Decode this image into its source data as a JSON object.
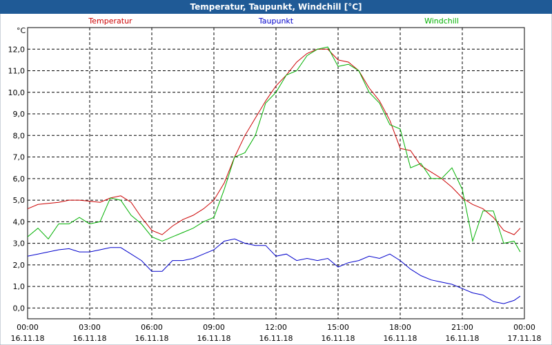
{
  "chart_data": {
    "type": "line",
    "title": "Temperatur, Taupunkt, Windchill [°C]",
    "y_unit": "°C",
    "x": [
      0,
      0.5,
      1,
      1.5,
      2,
      2.5,
      3,
      3.5,
      4,
      4.5,
      5,
      5.5,
      6,
      6.5,
      7,
      7.5,
      8,
      8.5,
      9,
      9.5,
      10,
      10.5,
      11,
      11.5,
      12,
      12.5,
      13,
      13.5,
      14,
      14.5,
      15,
      15.5,
      16,
      16.5,
      17,
      17.5,
      18,
      18.5,
      19,
      19.5,
      20,
      20.5,
      21,
      21.5,
      22,
      22.5,
      23,
      23.5,
      23.8
    ],
    "series": [
      {
        "name": "Temperatur",
        "color": "#cc0000",
        "values": [
          4.6,
          4.8,
          4.85,
          4.9,
          5.0,
          5.0,
          4.95,
          4.9,
          5.1,
          5.2,
          4.9,
          4.2,
          3.6,
          3.4,
          3.8,
          4.1,
          4.3,
          4.6,
          5.0,
          5.8,
          7.0,
          8.0,
          8.8,
          9.6,
          10.3,
          10.8,
          11.4,
          11.8,
          12.0,
          12.0,
          11.5,
          11.4,
          11.0,
          10.2,
          9.6,
          8.7,
          7.4,
          7.3,
          6.6,
          6.3,
          6.0,
          5.6,
          5.1,
          4.8,
          4.6,
          4.2,
          3.6,
          3.4,
          3.7
        ]
      },
      {
        "name": "Taupunkt",
        "color": "#0000cc",
        "values": [
          2.4,
          2.5,
          2.6,
          2.7,
          2.75,
          2.6,
          2.6,
          2.7,
          2.8,
          2.8,
          2.5,
          2.2,
          1.7,
          1.7,
          2.2,
          2.2,
          2.3,
          2.5,
          2.7,
          3.1,
          3.2,
          3.0,
          2.9,
          2.9,
          2.4,
          2.5,
          2.2,
          2.3,
          2.2,
          2.3,
          1.9,
          2.1,
          2.2,
          2.4,
          2.3,
          2.5,
          2.2,
          1.8,
          1.5,
          1.3,
          1.2,
          1.1,
          0.9,
          0.7,
          0.6,
          0.3,
          0.2,
          0.35,
          0.55
        ]
      },
      {
        "name": "Windchill",
        "color": "#00b000",
        "values": [
          3.3,
          3.7,
          3.2,
          3.9,
          3.9,
          4.2,
          3.9,
          4.0,
          5.1,
          5.0,
          4.3,
          3.9,
          3.3,
          3.1,
          3.3,
          3.5,
          3.7,
          4.0,
          4.2,
          5.5,
          7.0,
          7.2,
          8.0,
          9.5,
          10.0,
          10.8,
          11.0,
          11.7,
          12.0,
          12.1,
          11.2,
          11.3,
          11.0,
          10.0,
          9.5,
          8.5,
          8.3,
          6.5,
          6.7,
          6.0,
          6.0,
          6.5,
          5.5,
          3.1,
          4.5,
          4.5,
          3.0,
          3.1,
          2.6
        ]
      }
    ],
    "xlim": [
      0,
      24
    ],
    "xticks": [
      {
        "value": 0,
        "label": "00:00\n16.11.18"
      },
      {
        "value": 3,
        "label": "03:00\n16.11.18"
      },
      {
        "value": 6,
        "label": "06:00\n16.11.18"
      },
      {
        "value": 9,
        "label": "09:00\n16.11.18"
      },
      {
        "value": 12,
        "label": "12:00\n16.11.18"
      },
      {
        "value": 15,
        "label": "15:00\n16.11.18"
      },
      {
        "value": 18,
        "label": "18:00\n16.11.18"
      },
      {
        "value": 21,
        "label": "21:00\n16.11.18"
      },
      {
        "value": 24,
        "label": "00:00\n17.11.18"
      }
    ],
    "ylim": [
      -0.5,
      13
    ],
    "yticks": [
      {
        "value": 0,
        "label": "0,0"
      },
      {
        "value": 1,
        "label": "1,0"
      },
      {
        "value": 2,
        "label": "2,0"
      },
      {
        "value": 3,
        "label": "3,0"
      },
      {
        "value": 4,
        "label": "4,0"
      },
      {
        "value": 5,
        "label": "5,0"
      },
      {
        "value": 6,
        "label": "6,0"
      },
      {
        "value": 7,
        "label": "7,0"
      },
      {
        "value": 8,
        "label": "8,0"
      },
      {
        "value": 9,
        "label": "9,0"
      },
      {
        "value": 10,
        "label": "10,0"
      },
      {
        "value": 11,
        "label": "11,0"
      },
      {
        "value": 12,
        "label": "12,0"
      }
    ],
    "grid": true
  }
}
